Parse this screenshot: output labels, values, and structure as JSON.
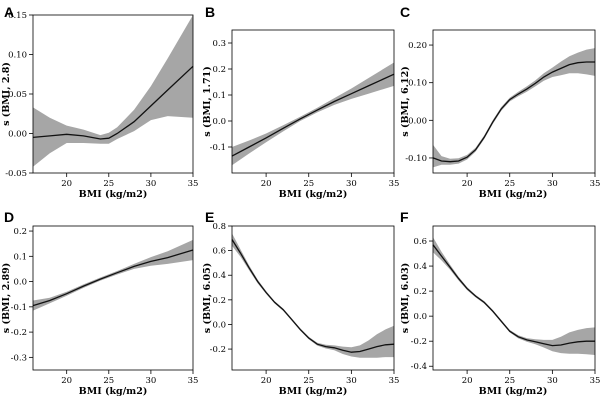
{
  "chart_data": [
    {
      "type": "line",
      "panel": "A",
      "xlabel": "BMI (kg/m2)",
      "ylabel": "s (BMI, 2.8)",
      "xlim": [
        16,
        35
      ],
      "ylim": [
        -0.05,
        0.15
      ],
      "xticks": [
        20,
        25,
        30,
        35
      ],
      "yticks": [
        -0.05,
        0.0,
        0.05,
        0.1,
        0.15
      ],
      "ytick_labels": [
        "-0.05",
        "0.00",
        "0.05",
        "0.10",
        "0.15"
      ],
      "series": [
        {
          "x": [
            16,
            18,
            20,
            22,
            24,
            25,
            26,
            28,
            30,
            32,
            35
          ],
          "y": [
            -0.005,
            -0.003,
            -0.001,
            -0.003,
            -0.007,
            -0.006,
            0.0,
            0.015,
            0.035,
            0.055,
            0.085
          ],
          "lower": [
            -0.042,
            -0.025,
            -0.012,
            -0.012,
            -0.013,
            -0.013,
            -0.007,
            0.003,
            0.017,
            0.022,
            0.02
          ],
          "upper": [
            0.033,
            0.02,
            0.01,
            0.005,
            -0.002,
            0.001,
            0.008,
            0.03,
            0.06,
            0.095,
            0.15
          ]
        }
      ]
    },
    {
      "type": "line",
      "panel": "B",
      "xlabel": "BMI (kg/m2)",
      "ylabel": "s (BMI, 1.71)",
      "xlim": [
        16,
        35
      ],
      "ylim": [
        -0.2,
        0.35
      ],
      "xticks": [
        20,
        25,
        30,
        35
      ],
      "yticks": [
        -0.1,
        0.0,
        0.1,
        0.2,
        0.3
      ],
      "ytick_labels": [
        "-0.1",
        "0.0",
        "0.1",
        "0.2",
        "0.3"
      ],
      "series": [
        {
          "x": [
            16,
            18,
            20,
            22,
            24,
            26,
            28,
            30,
            32,
            35
          ],
          "y": [
            -0.135,
            -0.1,
            -0.065,
            -0.028,
            0.008,
            0.042,
            0.075,
            0.105,
            0.135,
            0.18
          ],
          "lower": [
            -0.17,
            -0.125,
            -0.082,
            -0.04,
            0.0,
            0.033,
            0.062,
            0.085,
            0.105,
            0.135
          ],
          "upper": [
            -0.1,
            -0.075,
            -0.048,
            -0.016,
            0.016,
            0.051,
            0.088,
            0.125,
            0.165,
            0.225
          ]
        }
      ]
    },
    {
      "type": "line",
      "panel": "C",
      "xlabel": "BMI (kg/m2)",
      "ylabel": "s (BMI, 6.12)",
      "xlim": [
        16,
        35
      ],
      "ylim": [
        -0.14,
        0.24
      ],
      "xticks": [
        20,
        25,
        30,
        35
      ],
      "yticks": [
        -0.1,
        0.0,
        0.1,
        0.2
      ],
      "ytick_labels": [
        "-0.10",
        "0.00",
        "0.10",
        "0.20"
      ],
      "series": [
        {
          "x": [
            16,
            17,
            18,
            19,
            20,
            21,
            22,
            23,
            24,
            25,
            26,
            27,
            28,
            29,
            30,
            31,
            32,
            33,
            34,
            35
          ],
          "y": [
            -0.1,
            -0.108,
            -0.11,
            -0.108,
            -0.098,
            -0.078,
            -0.045,
            -0.005,
            0.03,
            0.055,
            0.07,
            0.083,
            0.098,
            0.115,
            0.128,
            0.138,
            0.148,
            0.153,
            0.155,
            0.155
          ],
          "lower": [
            -0.125,
            -0.118,
            -0.118,
            -0.115,
            -0.104,
            -0.083,
            -0.05,
            -0.01,
            0.025,
            0.05,
            0.064,
            0.076,
            0.09,
            0.105,
            0.115,
            0.12,
            0.125,
            0.125,
            0.122,
            0.118
          ],
          "upper": [
            -0.065,
            -0.095,
            -0.102,
            -0.101,
            -0.092,
            -0.073,
            -0.04,
            0.0,
            0.035,
            0.06,
            0.076,
            0.09,
            0.106,
            0.125,
            0.14,
            0.156,
            0.17,
            0.18,
            0.188,
            0.192
          ]
        }
      ]
    },
    {
      "type": "line",
      "panel": "D",
      "xlabel": "BMI (kg/m2)",
      "ylabel": "s (BMI, 2.89)",
      "xlim": [
        16,
        35
      ],
      "ylim": [
        -0.35,
        0.22
      ],
      "xticks": [
        20,
        25,
        30,
        35
      ],
      "yticks": [
        -0.3,
        -0.2,
        -0.1,
        0.0,
        0.1,
        0.2
      ],
      "ytick_labels": [
        "-0.3",
        "-0.2",
        "-0.1",
        "0.0",
        "0.1",
        "0.2"
      ],
      "series": [
        {
          "x": [
            16,
            18,
            20,
            22,
            24,
            26,
            28,
            30,
            32,
            35
          ],
          "y": [
            -0.095,
            -0.075,
            -0.048,
            -0.018,
            0.01,
            0.035,
            0.06,
            0.08,
            0.095,
            0.125
          ],
          "lower": [
            -0.115,
            -0.086,
            -0.056,
            -0.025,
            0.004,
            0.028,
            0.05,
            0.063,
            0.07,
            0.085
          ],
          "upper": [
            -0.075,
            -0.064,
            -0.04,
            -0.011,
            0.016,
            0.042,
            0.07,
            0.097,
            0.12,
            0.165
          ]
        }
      ]
    },
    {
      "type": "line",
      "panel": "E",
      "xlabel": "BMI (kg/m2)",
      "ylabel": "s (BMI, 6.05)",
      "xlim": [
        16,
        35
      ],
      "ylim": [
        -0.37,
        0.8
      ],
      "xticks": [
        20,
        25,
        30,
        35
      ],
      "yticks": [
        -0.2,
        0.0,
        0.2,
        0.4,
        0.6,
        0.8
      ],
      "ytick_labels": [
        "-0.2",
        "0.0",
        "0.2",
        "0.4",
        "0.6",
        "0.8"
      ],
      "series": [
        {
          "x": [
            16,
            17,
            18,
            19,
            20,
            21,
            22,
            23,
            24,
            25,
            26,
            27,
            28,
            29,
            30,
            31,
            32,
            33,
            34,
            35
          ],
          "y": [
            0.69,
            0.58,
            0.46,
            0.35,
            0.26,
            0.18,
            0.12,
            0.04,
            -0.04,
            -0.11,
            -0.16,
            -0.18,
            -0.19,
            -0.21,
            -0.225,
            -0.22,
            -0.2,
            -0.18,
            -0.165,
            -0.16
          ],
          "lower": [
            0.64,
            0.55,
            0.44,
            0.335,
            0.248,
            0.17,
            0.11,
            0.03,
            -0.05,
            -0.12,
            -0.172,
            -0.195,
            -0.21,
            -0.24,
            -0.26,
            -0.27,
            -0.27,
            -0.27,
            -0.265,
            -0.265
          ],
          "upper": [
            0.74,
            0.61,
            0.48,
            0.365,
            0.272,
            0.19,
            0.13,
            0.05,
            -0.03,
            -0.1,
            -0.148,
            -0.165,
            -0.17,
            -0.18,
            -0.185,
            -0.17,
            -0.13,
            -0.08,
            -0.04,
            -0.01
          ]
        }
      ]
    },
    {
      "type": "line",
      "panel": "F",
      "xlabel": "BMI (kg/m2)",
      "ylabel": "s (BMI, 6.03)",
      "xlim": [
        16,
        35
      ],
      "ylim": [
        -0.43,
        0.72
      ],
      "xticks": [
        20,
        25,
        30,
        35
      ],
      "yticks": [
        -0.4,
        -0.2,
        0.0,
        0.2,
        0.4,
        0.6
      ],
      "ytick_labels": [
        "-0.4",
        "-0.2",
        "0.0",
        "0.2",
        "0.4",
        "0.6"
      ],
      "series": [
        {
          "x": [
            16,
            17,
            18,
            19,
            20,
            21,
            22,
            23,
            24,
            25,
            26,
            27,
            28,
            29,
            30,
            31,
            32,
            33,
            34,
            35
          ],
          "y": [
            0.57,
            0.48,
            0.39,
            0.3,
            0.22,
            0.16,
            0.11,
            0.04,
            -0.04,
            -0.12,
            -0.165,
            -0.19,
            -0.205,
            -0.22,
            -0.235,
            -0.23,
            -0.215,
            -0.205,
            -0.2,
            -0.2
          ],
          "lower": [
            0.51,
            0.445,
            0.37,
            0.285,
            0.208,
            0.15,
            0.1,
            0.03,
            -0.05,
            -0.13,
            -0.178,
            -0.205,
            -0.225,
            -0.25,
            -0.28,
            -0.295,
            -0.3,
            -0.3,
            -0.305,
            -0.31
          ],
          "upper": [
            0.63,
            0.515,
            0.41,
            0.315,
            0.232,
            0.17,
            0.12,
            0.05,
            -0.03,
            -0.11,
            -0.152,
            -0.175,
            -0.185,
            -0.19,
            -0.19,
            -0.165,
            -0.13,
            -0.11,
            -0.095,
            -0.09
          ]
        }
      ]
    }
  ]
}
